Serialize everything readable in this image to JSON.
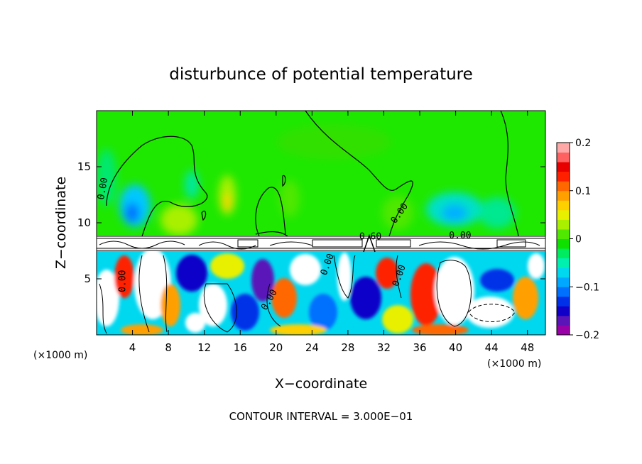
{
  "chart_data": {
    "type": "heatmap",
    "title": "disturbunce of potential temperature",
    "xlabel": "X−coordinate",
    "ylabel": "Z−coordinate",
    "x_unit_left": "(×1000 m)",
    "x_unit_right": "(×1000 m)",
    "footer": "CONTOUR INTERVAL = 3.000E−01",
    "xlim": [
      0,
      50
    ],
    "ylim": [
      0,
      20
    ],
    "x_ticks": [
      4,
      8,
      12,
      16,
      20,
      24,
      28,
      32,
      36,
      40,
      44,
      48
    ],
    "y_ticks": [
      5,
      10,
      15
    ],
    "colorbar": {
      "min": -0.2,
      "max": 0.2,
      "ticks": [
        0.2,
        0.1,
        0,
        -0.1,
        -0.2
      ],
      "tick_labels": [
        "0.2",
        "0.1",
        "0",
        "−0.1",
        "−0.2"
      ],
      "colors": [
        "#9a00a8",
        "#5a14b8",
        "#1000c8",
        "#0030e8",
        "#0070ff",
        "#00a8ff",
        "#00d8f0",
        "#00f0b0",
        "#00ec60",
        "#10e000",
        "#50e800",
        "#a8f000",
        "#e8f000",
        "#ffd000",
        "#ffa000",
        "#ff6800",
        "#ff2000",
        "#e80000",
        "#ff6060",
        "#ffa8a8"
      ]
    },
    "contour_labels": [
      {
        "text": "0.00",
        "x": 1.0,
        "z": 13.0,
        "rotate": -80
      },
      {
        "text": "0.00",
        "x": 34.0,
        "z": 10.7,
        "rotate": -55
      },
      {
        "text": "0.60",
        "x": 30.5,
        "z": 8.5,
        "rotate": 0
      },
      {
        "text": "0.00",
        "x": 40.5,
        "z": 8.6,
        "rotate": 0
      },
      {
        "text": "0.00",
        "x": 3.2,
        "z": 4.8,
        "rotate": -90
      },
      {
        "text": "0.00",
        "x": 19.5,
        "z": 3.0,
        "rotate": -60
      },
      {
        "text": "0.00",
        "x": 34.0,
        "z": 5.2,
        "rotate": -70
      },
      {
        "text": "0.00",
        "x": 26.0,
        "z": 6.2,
        "rotate": -70
      }
    ]
  }
}
